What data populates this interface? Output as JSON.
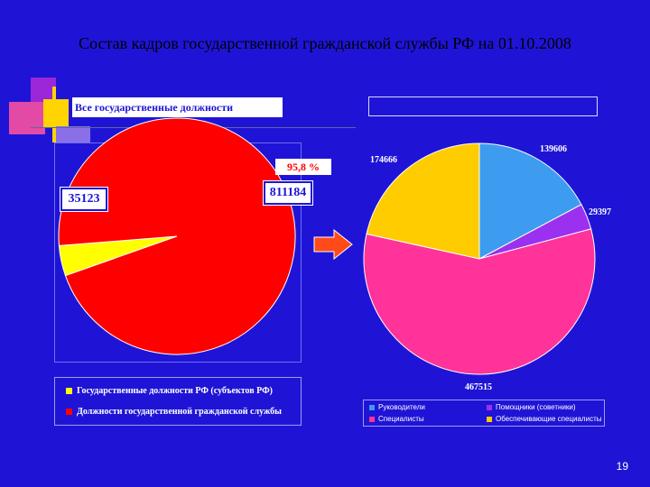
{
  "slide": {
    "title": "Состав кадров государственной гражданской службы РФ на 01.10.2008",
    "page_number": "19"
  },
  "chart_data": [
    {
      "type": "pie",
      "title": "Все государственные должности",
      "slices": [
        {
          "name": "Государственные должности РФ (субъектов РФ)",
          "value": 35123,
          "color": "#ffff00"
        },
        {
          "name": "Должности государственной гражданской службы",
          "value": 811184,
          "color": "#ff0000"
        }
      ],
      "annotation": "95,8 %",
      "legend_position": "bottom"
    },
    {
      "type": "pie",
      "title": "",
      "slices": [
        {
          "name": "Руководители",
          "value": 139606,
          "color": "#3d9cf0"
        },
        {
          "name": "Помощники (советники)",
          "value": 29397,
          "color": "#9b30f0"
        },
        {
          "name": "Специалисты",
          "value": 467515,
          "color": "#ff3399"
        },
        {
          "name": "Обеспечивающие специалисты",
          "value": 174666,
          "color": "#ffcc00"
        }
      ],
      "legend_position": "bottom"
    }
  ]
}
